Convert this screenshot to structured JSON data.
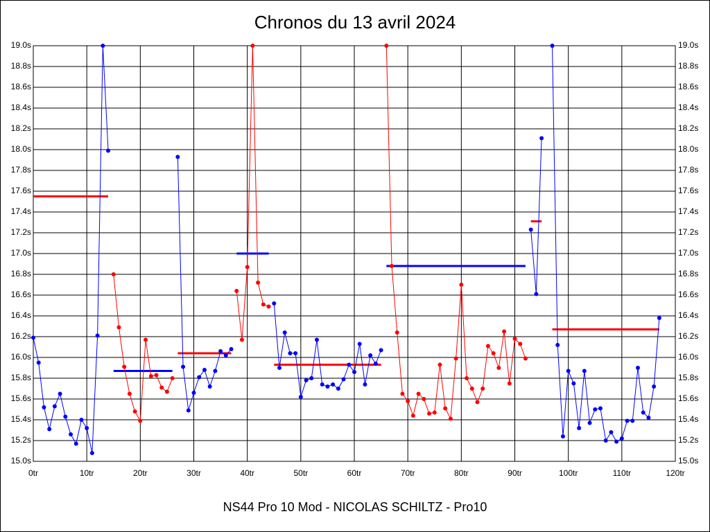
{
  "chart_data": {
    "type": "line",
    "title": "Chronos du 13 avril 2024",
    "footer": "NS44 Pro 10 Mod - NICOLAS SCHILTZ - Pro10",
    "xlim": [
      0,
      120
    ],
    "xticks": [
      {
        "value": 0,
        "label": "0tr"
      },
      {
        "value": 10,
        "label": "10tr"
      },
      {
        "value": 20,
        "label": "20tr"
      },
      {
        "value": 30,
        "label": "30tr"
      },
      {
        "value": 40,
        "label": "40tr"
      },
      {
        "value": 50,
        "label": "50tr"
      },
      {
        "value": 60,
        "label": "60tr"
      },
      {
        "value": 70,
        "label": "70tr"
      },
      {
        "value": 80,
        "label": "80tr"
      },
      {
        "value": 90,
        "label": "90tr"
      },
      {
        "value": 100,
        "label": "100tr"
      },
      {
        "value": 110,
        "label": "110tr"
      },
      {
        "value": 120,
        "label": "120tr"
      }
    ],
    "ylim": [
      15.0,
      19.0
    ],
    "yticks": [
      {
        "value": 15.0,
        "label": "15.0s"
      },
      {
        "value": 15.2,
        "label": "15.2s"
      },
      {
        "value": 15.4,
        "label": "15.4s"
      },
      {
        "value": 15.6,
        "label": "15.6s"
      },
      {
        "value": 15.8,
        "label": "15.8s"
      },
      {
        "value": 16.0,
        "label": "16.0s"
      },
      {
        "value": 16.2,
        "label": "16.2s"
      },
      {
        "value": 16.4,
        "label": "16.4s"
      },
      {
        "value": 16.6,
        "label": "16.6s"
      },
      {
        "value": 16.8,
        "label": "16.8s"
      },
      {
        "value": 17.0,
        "label": "17.0s"
      },
      {
        "value": 17.2,
        "label": "17.2s"
      },
      {
        "value": 17.4,
        "label": "17.4s"
      },
      {
        "value": 17.6,
        "label": "17.6s"
      },
      {
        "value": 17.8,
        "label": "17.8s"
      },
      {
        "value": 18.0,
        "label": "18.0s"
      },
      {
        "value": 18.2,
        "label": "18.2s"
      },
      {
        "value": 18.4,
        "label": "18.4s"
      },
      {
        "value": 18.6,
        "label": "18.6s"
      },
      {
        "value": 18.8,
        "label": "18.8s"
      },
      {
        "value": 19.0,
        "label": "19.0s"
      }
    ],
    "grid": true,
    "series": [
      {
        "color": "#0000ff",
        "x": [
          0,
          1,
          2,
          3,
          4,
          5,
          6,
          7,
          8,
          9,
          10,
          11,
          12,
          13,
          14
        ],
        "values": [
          16.19,
          15.95,
          15.52,
          15.31,
          15.53,
          15.65,
          15.43,
          15.26,
          15.17,
          15.4,
          15.32,
          15.08,
          16.21,
          19.0,
          17.99
        ]
      },
      {
        "color": "#ff0000",
        "x": [
          15,
          16,
          17,
          18,
          19,
          20,
          21,
          22,
          23,
          24,
          25,
          26
        ],
        "values": [
          16.8,
          16.29,
          15.91,
          15.65,
          15.48,
          15.39,
          16.17,
          15.82,
          15.83,
          15.71,
          15.67,
          15.8
        ]
      },
      {
        "color": "#0000ff",
        "x": [
          27,
          28,
          29,
          30,
          31,
          32,
          33,
          34,
          35,
          36,
          37
        ],
        "values": [
          17.93,
          15.91,
          15.49,
          15.66,
          15.81,
          15.88,
          15.72,
          15.87,
          16.06,
          16.02,
          16.08
        ]
      },
      {
        "color": "#ff0000",
        "x": [
          38,
          39,
          40,
          41,
          42,
          43,
          44
        ],
        "values": [
          16.64,
          16.17,
          16.87,
          19.0,
          16.72,
          16.51,
          16.49
        ]
      },
      {
        "color": "#0000ff",
        "x": [
          45,
          46,
          47,
          48,
          49,
          50,
          51,
          52,
          53,
          54,
          55,
          56,
          57,
          58,
          59,
          60,
          61,
          62,
          63,
          64,
          65
        ],
        "values": [
          16.52,
          15.9,
          16.24,
          16.04,
          16.04,
          15.62,
          15.78,
          15.8,
          16.17,
          15.74,
          15.72,
          15.74,
          15.7,
          15.79,
          15.93,
          15.86,
          16.13,
          15.74,
          16.02,
          15.94,
          16.07
        ]
      },
      {
        "color": "#ff0000",
        "x": [
          66,
          67,
          68,
          69,
          70,
          71,
          72,
          73,
          74,
          75,
          76,
          77,
          78,
          79,
          80,
          81,
          82,
          83,
          84,
          85,
          86,
          87,
          88,
          89,
          90,
          91,
          92
        ],
        "values": [
          19.0,
          16.88,
          16.24,
          15.65,
          15.58,
          15.44,
          15.65,
          15.6,
          15.46,
          15.47,
          15.93,
          15.51,
          15.41,
          15.99,
          16.7,
          15.8,
          15.7,
          15.57,
          15.7,
          16.11,
          16.04,
          15.9,
          16.25,
          15.75,
          16.18,
          16.13,
          15.99
        ]
      },
      {
        "color": "#0000ff",
        "x": [
          93,
          94,
          95
        ],
        "values": [
          17.23,
          16.61,
          18.11
        ]
      },
      {
        "color": "#0000ff",
        "x": [
          97,
          98,
          99,
          100,
          101,
          102,
          103,
          104,
          105,
          106,
          107,
          108,
          109,
          110,
          111,
          112,
          113,
          114,
          115,
          116,
          117
        ],
        "values": [
          19.0,
          16.12,
          15.24,
          15.87,
          15.75,
          15.32,
          15.87,
          15.37,
          15.5,
          15.51,
          15.2,
          15.28,
          15.19,
          15.22,
          15.39,
          15.39,
          15.9,
          15.47,
          15.42,
          15.72,
          16.38
        ]
      }
    ],
    "mean_lines": [
      {
        "color": "#ff0000",
        "x": [
          0,
          14
        ],
        "value": 17.55
      },
      {
        "color": "#0000ff",
        "x": [
          15,
          26
        ],
        "value": 15.87
      },
      {
        "color": "#ff0000",
        "x": [
          27,
          37
        ],
        "value": 16.04
      },
      {
        "color": "#0000ff",
        "x": [
          38,
          44
        ],
        "value": 17.0
      },
      {
        "color": "#ff0000",
        "x": [
          45,
          65
        ],
        "value": 15.93
      },
      {
        "color": "#0000ff",
        "x": [
          66,
          92
        ],
        "value": 16.88
      },
      {
        "color": "#ff0000",
        "x": [
          93,
          95
        ],
        "value": 17.31
      },
      {
        "color": "#ff0000",
        "x": [
          97,
          117
        ],
        "value": 16.27
      }
    ]
  }
}
